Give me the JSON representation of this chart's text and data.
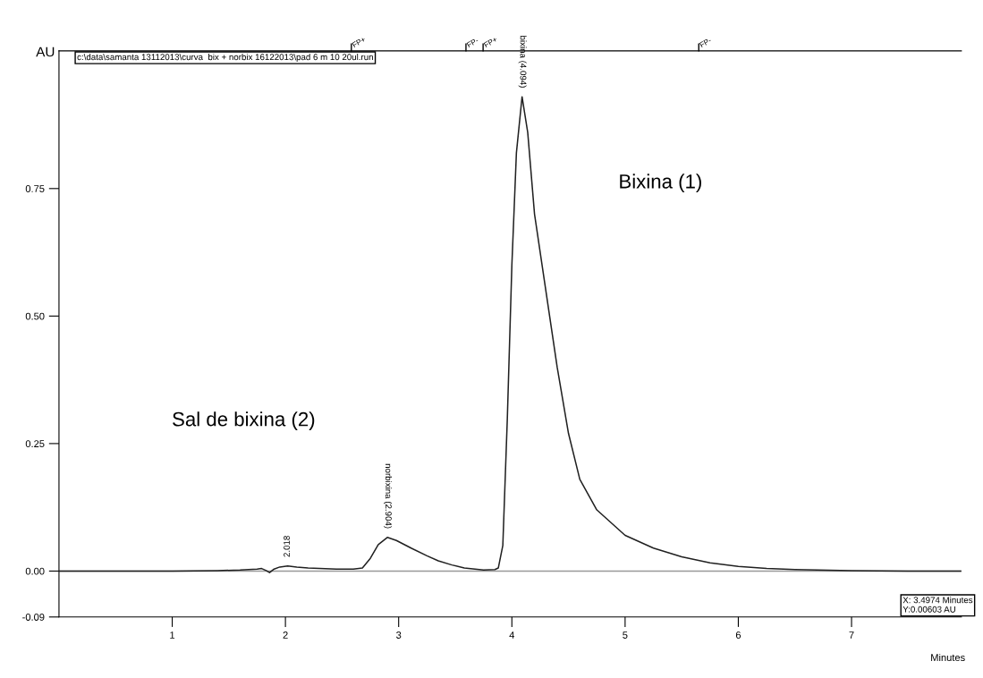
{
  "chart_data": {
    "type": "line",
    "xlabel": "Minutes",
    "ylabel": "AU",
    "x": [
      0,
      0.5,
      1.0,
      1.4,
      1.6,
      1.75,
      1.79,
      1.83,
      1.86,
      1.9,
      1.95,
      2.02,
      2.1,
      2.2,
      2.3,
      2.45,
      2.6,
      2.68,
      2.75,
      2.82,
      2.9,
      2.98,
      3.11,
      3.25,
      3.35,
      3.47,
      3.58,
      3.75,
      3.85,
      3.88,
      3.92,
      3.96,
      4.0,
      4.04,
      4.09,
      4.14,
      4.2,
      4.3,
      4.4,
      4.5,
      4.6,
      4.75,
      5.0,
      5.25,
      5.5,
      5.75,
      6.0,
      6.25,
      6.5,
      7.0,
      7.5,
      7.97
    ],
    "series": [
      {
        "color": "#202020",
        "values": [
          0,
          0,
          0,
          0.001,
          0.002,
          0.004,
          0.005,
          0.001,
          -0.003,
          0.004,
          0.008,
          0.01,
          0.008,
          0.006,
          0.005,
          0.004,
          0.004,
          0.006,
          0.025,
          0.052,
          0.066,
          0.06,
          0.045,
          0.03,
          0.02,
          0.012,
          0.006,
          0.002,
          0.003,
          0.006,
          0.05,
          0.3,
          0.6,
          0.82,
          0.93,
          0.86,
          0.7,
          0.55,
          0.4,
          0.27,
          0.18,
          0.12,
          0.07,
          0.045,
          0.028,
          0.016,
          0.009,
          0.005,
          0.003,
          0.001,
          0,
          0
        ]
      }
    ],
    "xlim": [
      0,
      7.97
    ],
    "ylim": [
      -0.09,
      1.02
    ],
    "xticks": [
      1,
      2,
      3,
      4,
      5,
      6,
      7
    ],
    "yticks": [
      {
        "value": -0.09,
        "label": "-0.09"
      },
      {
        "value": 0,
        "label": "0.00"
      },
      {
        "value": 0.25,
        "label": "0.25"
      },
      {
        "value": 0.5,
        "label": "0.50"
      },
      {
        "value": 0.75,
        "label": "0.75"
      }
    ],
    "ref_lines": [
      {
        "axis": "y",
        "value": 0,
        "color": "#999999"
      }
    ],
    "grid": false,
    "legend": false,
    "marker": "none",
    "line_style": "solid",
    "annotations": [
      {
        "text": "bixina (4.094)",
        "x": 4.094,
        "y": 0.93
      },
      {
        "text": "norbixina (2.904)",
        "x": 2.904,
        "y": 0.066
      },
      {
        "text": "2.018",
        "x": 2.018,
        "y": 0.01
      },
      "Bixina (1)",
      "Sal de bixina (2)",
      "FP+",
      "FP-",
      "FP+",
      "FP-",
      "c:\\data\\samanta 13112013\\curva  bix + norbix 16122013\\pad 6 m 10 20ul.run",
      "X: 3.4974 Minutes",
      "Y:0.00603 AU"
    ]
  }
}
